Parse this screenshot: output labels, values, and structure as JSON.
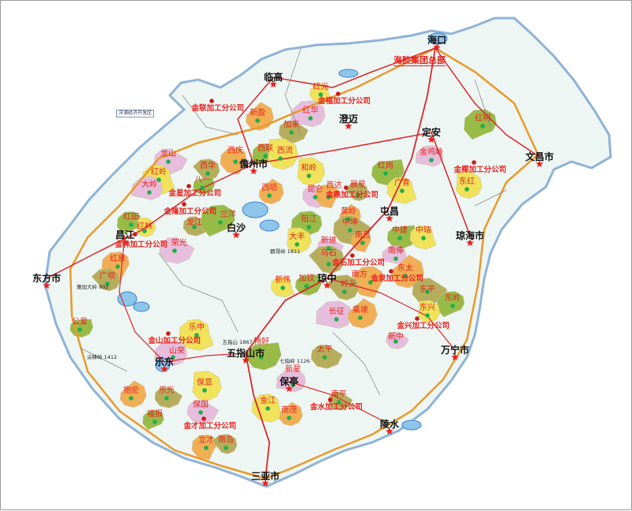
{
  "map": {
    "headquarters": "海胶集团总部",
    "zone_label": "洋浦经济开发区",
    "cities": [
      "海口",
      "临高",
      "澄迈",
      "定安",
      "文昌市",
      "儋州市",
      "屯昌",
      "琼海市",
      "昌江",
      "白沙",
      "东方市",
      "琼中",
      "乐东",
      "五指山市",
      "万宁市",
      "保亭",
      "陵水",
      "三亚市"
    ],
    "companies": [
      "金福加工分公司",
      "金联加工分公司",
      "金星加工分公司",
      "金隆加工分公司",
      "金林加工分公司",
      "金鼎加工分公司",
      "金石加工分公司",
      "金泉加工分公司",
      "金兴加工分公司",
      "金山加工分公司",
      "金才加工分公司",
      "金水加工分公司",
      "金椰加工分公司"
    ],
    "farms": [
      "红光",
      "红华",
      "新盈",
      "加来",
      "西联",
      "西流",
      "龙山",
      "西庆",
      "西华",
      "八一",
      "红岭",
      "大岭",
      "西培",
      "龙江",
      "兰洋",
      "和岭",
      "昆仑",
      "西达",
      "晨星",
      "红岗",
      "广青",
      "金鸡岭",
      "黄岭",
      "中坤",
      "阳江",
      "大丰",
      "新进",
      "南吕",
      "乌石",
      "中建",
      "中瑞",
      "南俸",
      "东太",
      "东平",
      "东岭",
      "东兴",
      "新中",
      "南方",
      "岭头",
      "加钗",
      "新伟",
      "长征",
      "乘坡",
      "太平",
      "红田",
      "红林",
      "荣光",
      "红泉",
      "广坝",
      "公爱",
      "乐中",
      "山荣",
      "抱伦",
      "乐光",
      "福报",
      "保显",
      "保国",
      "立才",
      "南岛",
      "畅好",
      "金江",
      "新星",
      "南茂",
      "南平",
      "红明",
      "东红"
    ],
    "peaks": [
      "五指山 1867",
      "鹦哥岭 1811",
      "尖峰岭 1412",
      "七指岭 1126",
      "雅加大岭 802"
    ],
    "colors": {
      "land": "#eef6f4",
      "sea": "#ffffff",
      "coast": "#8fb3d6",
      "water": "#3f7fd0",
      "road_main": "#d8262a",
      "expressway": "#e89a2a",
      "farm_yellow": "#f0e25a",
      "farm_orange": "#f0ae55",
      "farm_green": "#98bb48",
      "farm_pink": "#e6bddc",
      "farm_khaki": "#b6ad5c",
      "label_red": "#e8201c"
    }
  }
}
